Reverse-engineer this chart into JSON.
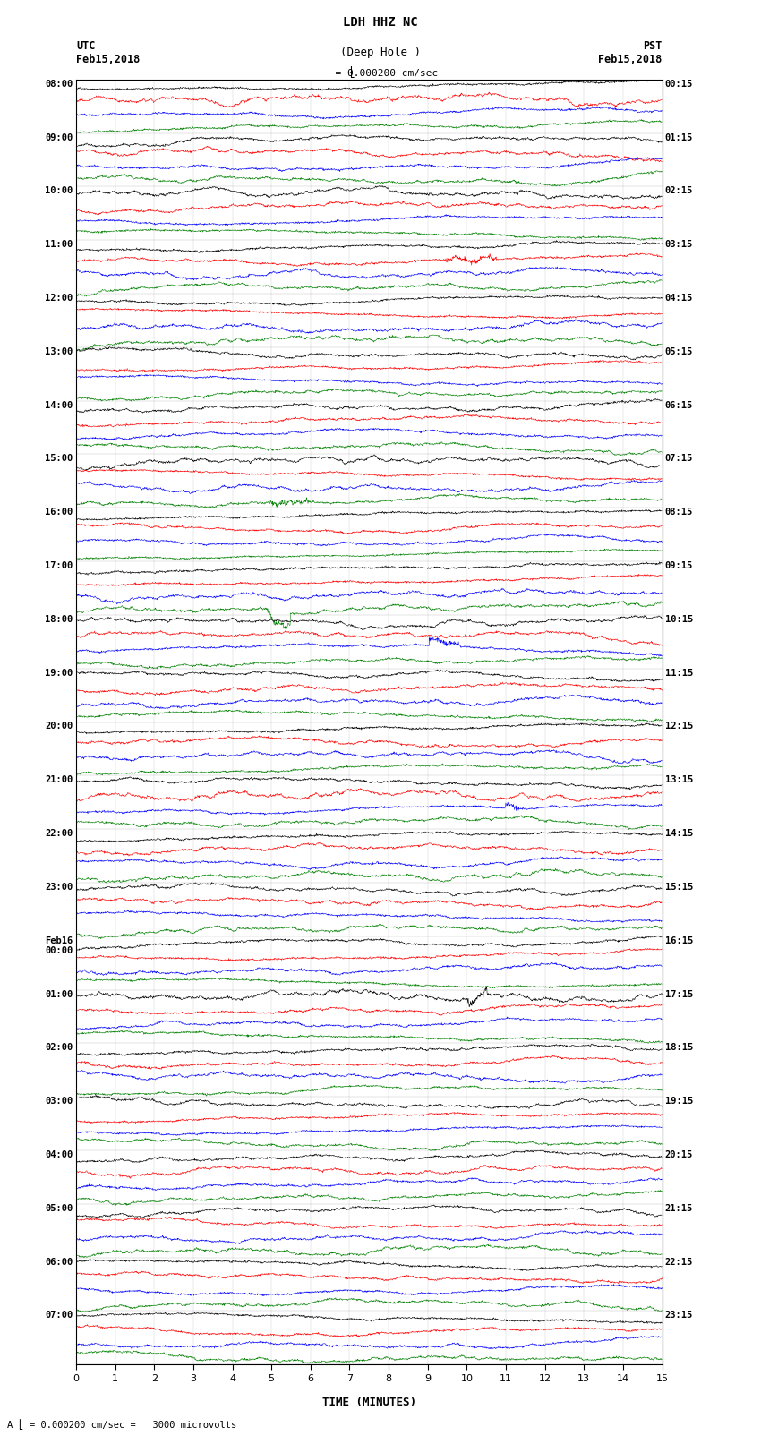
{
  "title_line1": "LDH HHZ NC",
  "title_line2": "(Deep Hole )",
  "scale_label": "= 0.000200 cm/sec",
  "bottom_label": "= 0.000200 cm/sec =   3000 microvolts",
  "xlabel": "TIME (MINUTES)",
  "left_header": "UTC\nFeb15,2018",
  "right_header": "PST\nFeb15,2018",
  "left_times": [
    "08:00",
    "09:00",
    "10:00",
    "11:00",
    "12:00",
    "13:00",
    "14:00",
    "15:00",
    "16:00",
    "17:00",
    "18:00",
    "19:00",
    "20:00",
    "21:00",
    "22:00",
    "23:00",
    "Feb16\n00:00",
    "01:00",
    "02:00",
    "03:00",
    "04:00",
    "05:00",
    "06:00",
    "07:00"
  ],
  "right_times": [
    "00:15",
    "01:15",
    "02:15",
    "03:15",
    "04:15",
    "05:15",
    "06:15",
    "07:15",
    "08:15",
    "09:15",
    "10:15",
    "11:15",
    "12:15",
    "13:15",
    "14:15",
    "15:15",
    "16:15",
    "17:15",
    "18:15",
    "19:15",
    "20:15",
    "21:15",
    "22:15",
    "23:15"
  ],
  "num_hours": 24,
  "traces_per_hour": 4,
  "colors": [
    "black",
    "red",
    "blue",
    "green"
  ],
  "fig_width": 8.5,
  "fig_height": 16.13,
  "dpi": 100,
  "xlim": [
    0,
    15
  ],
  "xticks": [
    0,
    1,
    2,
    3,
    4,
    5,
    6,
    7,
    8,
    9,
    10,
    11,
    12,
    13,
    14,
    15
  ],
  "trace_amplitude": 0.35,
  "trace_noise_std": 0.15,
  "background_color": "white",
  "line_width": 0.4,
  "seed": 42
}
